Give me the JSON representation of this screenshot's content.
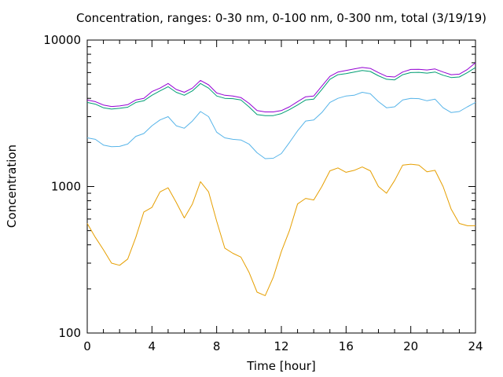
{
  "chart_data": {
    "type": "line",
    "title": "Concentration, ranges: 0-30 nm, 0-100 nm, 0-300 nm, total (3/19/19)",
    "xlabel": "Time [hour]",
    "ylabel": "Concentration",
    "xlim": [
      0,
      24
    ],
    "ylim": [
      100,
      10000
    ],
    "yscale": "log",
    "grid": false,
    "legend": "none",
    "x_ticks": [
      0,
      4,
      8,
      12,
      16,
      20,
      24
    ],
    "x_tick_labels": [
      "0",
      "4",
      "8",
      "12",
      "16",
      "20",
      "24"
    ],
    "y_ticks": [
      100,
      1000,
      10000
    ],
    "y_tick_labels": [
      "100",
      "1000",
      "10000"
    ],
    "x": [
      0,
      0.5,
      1,
      1.5,
      2,
      2.5,
      3,
      3.5,
      4,
      4.5,
      5,
      5.5,
      6,
      6.5,
      7,
      7.5,
      8,
      8.5,
      9,
      9.5,
      10,
      10.5,
      11,
      11.5,
      12,
      12.5,
      13,
      13.5,
      14,
      14.5,
      15,
      15.5,
      16,
      16.5,
      17,
      17.5,
      18,
      18.5,
      19,
      19.5,
      20,
      20.5,
      21,
      21.5,
      22,
      22.5,
      23,
      23.5,
      24
    ],
    "series": [
      {
        "color": "#e69f00",
        "values": [
          560,
          450,
          370,
          300,
          290,
          320,
          450,
          670,
          720,
          920,
          980,
          780,
          610,
          760,
          1080,
          920,
          580,
          380,
          350,
          330,
          260,
          190,
          180,
          240,
          360,
          500,
          760,
          830,
          810,
          1000,
          1280,
          1340,
          1250,
          1290,
          1360,
          1280,
          1000,
          900,
          1100,
          1400,
          1420,
          1400,
          1260,
          1290,
          1000,
          700,
          560,
          540,
          540
        ]
      },
      {
        "color": "#56b4e9",
        "values": [
          2150,
          2100,
          1920,
          1870,
          1880,
          1950,
          2200,
          2300,
          2600,
          2850,
          3000,
          2600,
          2500,
          2800,
          3250,
          3000,
          2350,
          2150,
          2100,
          2080,
          1950,
          1700,
          1550,
          1560,
          1680,
          2000,
          2400,
          2800,
          2850,
          3200,
          3750,
          4000,
          4150,
          4200,
          4400,
          4300,
          3800,
          3450,
          3500,
          3900,
          4000,
          3980,
          3850,
          3950,
          3450,
          3200,
          3250,
          3500,
          3750
        ]
      },
      {
        "color": "#009e73",
        "values": [
          3750,
          3650,
          3450,
          3380,
          3420,
          3480,
          3750,
          3850,
          4200,
          4500,
          4800,
          4400,
          4200,
          4500,
          5050,
          4700,
          4150,
          4000,
          3980,
          3900,
          3500,
          3100,
          3050,
          3050,
          3150,
          3350,
          3600,
          3900,
          3950,
          4600,
          5400,
          5800,
          5900,
          6050,
          6200,
          6100,
          5700,
          5400,
          5350,
          5800,
          6000,
          6020,
          5950,
          6050,
          5750,
          5550,
          5600,
          6000,
          6500
        ]
      },
      {
        "color": "#9400d3",
        "values": [
          3900,
          3800,
          3600,
          3520,
          3550,
          3620,
          3900,
          4000,
          4450,
          4700,
          5050,
          4600,
          4400,
          4700,
          5300,
          4950,
          4350,
          4200,
          4150,
          4050,
          3700,
          3300,
          3230,
          3230,
          3300,
          3500,
          3800,
          4100,
          4150,
          4850,
          5650,
          6050,
          6200,
          6350,
          6500,
          6400,
          6000,
          5650,
          5600,
          6050,
          6300,
          6320,
          6250,
          6350,
          6050,
          5800,
          5850,
          6300,
          7000
        ]
      }
    ]
  }
}
